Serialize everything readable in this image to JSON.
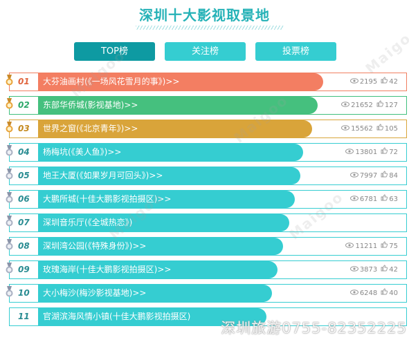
{
  "page": {
    "title": "深圳十大影视取景地"
  },
  "tabs": [
    {
      "label": "TOP榜",
      "active": true
    },
    {
      "label": "关注榜",
      "active": false
    },
    {
      "label": "投票榜",
      "active": false
    }
  ],
  "ranking": [
    {
      "rank": "01",
      "label": "大芬油画村(《一场风花雪月的事》)>>",
      "views": "2195",
      "likes": "42",
      "score": 1.0
    },
    {
      "rank": "02",
      "label": "东部华侨城(影视基地)>>",
      "views": "21652",
      "likes": "127",
      "score": 0.98
    },
    {
      "rank": "03",
      "label": "世界之窗(《北京青年》)>>",
      "views": "15562",
      "likes": "105",
      "score": 0.96
    },
    {
      "rank": "04",
      "label": "杨梅坑(《美人鱼》)>>",
      "views": "13801",
      "likes": "72",
      "score": 0.93
    },
    {
      "rank": "05",
      "label": "地王大厦(《如果岁月可回头》)>>",
      "views": "7997",
      "likes": "84",
      "score": 0.92
    },
    {
      "rank": "06",
      "label": "大鹏所城(十佳大鹏影视拍摄区)>>",
      "views": "6781",
      "likes": "63",
      "score": 0.9
    },
    {
      "rank": "07",
      "label": "深圳音乐厅(《全城热恋》)",
      "views": "",
      "likes": "",
      "score": 0.88
    },
    {
      "rank": "08",
      "label": "深圳湾公园(《特殊身份》)>>",
      "views": "11211",
      "likes": "75",
      "score": 0.86
    },
    {
      "rank": "09",
      "label": "玫瑰海岸(十佳大鹏影视拍摄区)>>",
      "views": "3873",
      "likes": "42",
      "score": 0.84
    },
    {
      "rank": "10",
      "label": "大小梅沙(梅沙影视基地)>>",
      "views": "6248",
      "likes": "40",
      "score": 0.82
    },
    {
      "rank": "11",
      "label": "官湖滨海风情小镇(十佳大鹏影视拍摄区)",
      "views": "",
      "likes": "",
      "score": 0.8
    }
  ],
  "watermarks": {
    "footer": "深圳旅游0755-82352225",
    "brand": "Maigoo"
  },
  "colors": {
    "accent": "#25b2b7",
    "tab_active": "#0e9aa2",
    "tab_inactive": "#35cdd1",
    "rank1": "#f37e62",
    "rank2": "#45c07e",
    "rank3": "#d9a43a",
    "default_bar": "#35cdd1"
  },
  "icons": {
    "medal_gold": "medal-gold-icon",
    "medal_silver": "medal-silver-icon",
    "views": "eye-icon",
    "likes": "thumbs-up-icon"
  }
}
